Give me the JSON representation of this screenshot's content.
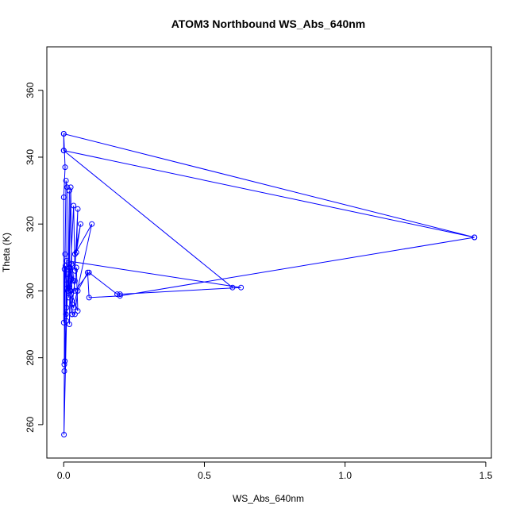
{
  "chart_data": {
    "type": "line",
    "title": "ATOM3 Northbound WS_Abs_640nm",
    "xlabel": "WS_Abs_640nm",
    "ylabel": "Theta (K)",
    "xlim": [
      -0.06,
      1.52
    ],
    "ylim": [
      250,
      373
    ],
    "xticks": [
      0,
      0.5,
      1,
      1.5
    ],
    "xtick_labels": [
      "0.0",
      "0.5",
      "1.0",
      "1.5"
    ],
    "yticks": [
      260,
      280,
      300,
      320,
      340,
      360
    ],
    "ytick_labels": [
      "260",
      "280",
      "300",
      "320",
      "340",
      "360"
    ],
    "grid": false,
    "markers": "open-circle",
    "series": [
      {
        "color": "#0000ff",
        "x": [
          0.0,
          0.0,
          0.6,
          0.0,
          1.46,
          0.0,
          0.005,
          0.0,
          0.0,
          0.01,
          0.012,
          0.008,
          0.005,
          0.003,
          0.002,
          0.006,
          0.01,
          0.015,
          0.02,
          0.018,
          0.025,
          0.03,
          0.028,
          0.02,
          0.022,
          0.035,
          0.04,
          0.05,
          0.045,
          0.06,
          0.04,
          0.1,
          0.035,
          0.03,
          0.04,
          0.045,
          0.05,
          0.025,
          0.02,
          0.035,
          0.03,
          0.04,
          0.09,
          0.19,
          0.2,
          0.63,
          0.01,
          0.008,
          0.004,
          0.002,
          0.001,
          0.01,
          0.015,
          0.02,
          0.03,
          0.04,
          0.05,
          0.085,
          0.09,
          0.2,
          1.46
        ],
        "y": [
          347.0,
          342.0,
          301.0,
          342.0,
          316.0,
          347.0,
          337.0,
          328.0,
          290.5,
          295.0,
          331.0,
          333.0,
          311.0,
          306.5,
          278.0,
          307.5,
          302.0,
          300.0,
          330.0,
          298.0,
          331.0,
          293.0,
          308.0,
          290.0,
          303.0,
          325.5,
          306.0,
          324.5,
          311.5,
          320.0,
          311.0,
          320.0,
          295.0,
          296.0,
          303.0,
          307.0,
          294.0,
          300.0,
          307.0,
          303.0,
          307.5,
          300.0,
          305.5,
          299.0,
          299.0,
          301.0,
          309.0,
          293.0,
          279.0,
          276.0,
          257.0,
          291.0,
          305.0,
          301.0,
          293.0,
          293.0,
          300.0,
          305.5,
          298.0,
          298.5,
          316.0
        ]
      }
    ]
  }
}
